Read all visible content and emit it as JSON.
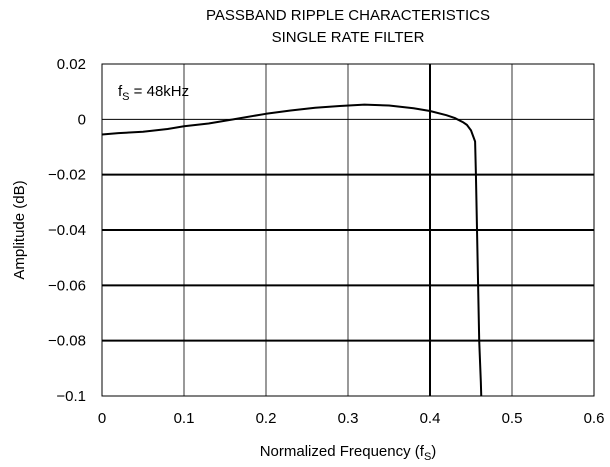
{
  "chart_data": {
    "type": "line",
    "title": [
      "PASSBAND RIPPLE CHARACTERISTICS",
      "SINGLE RATE FILTER"
    ],
    "xlabel": {
      "text": "Normalized Frequency (f",
      "sub": "S",
      "suffix": ")"
    },
    "ylabel": "Amplitude (dB)",
    "xlim": [
      0,
      0.6
    ],
    "ylim": [
      -0.1,
      0.02
    ],
    "x_ticks": [
      0,
      0.1,
      0.2,
      0.3,
      0.4,
      0.5,
      0.6
    ],
    "x_tick_labels": [
      "0",
      "0.1",
      "0.2",
      "0.3",
      "0.4",
      "0.5",
      "0.6"
    ],
    "y_ticks": [
      0.02,
      0,
      -0.02,
      -0.04,
      -0.06,
      -0.08,
      -0.1
    ],
    "y_tick_labels": [
      "0.02",
      "0",
      "−0.02",
      "−0.04",
      "−0.06",
      "−0.08",
      "−0.1"
    ],
    "grid": true,
    "annotation": {
      "prefix": "f",
      "sub": "S",
      "text": " = 48kHz"
    },
    "series": [
      {
        "color": "#000000",
        "x": [
          0,
          0.02,
          0.05,
          0.08,
          0.1,
          0.13,
          0.16,
          0.2,
          0.23,
          0.26,
          0.29,
          0.32,
          0.35,
          0.38,
          0.4,
          0.42,
          0.43,
          0.44,
          0.445,
          0.45,
          0.455,
          0.456,
          0.458,
          0.46,
          0.462,
          0.4625
        ],
        "y": [
          -0.0055,
          -0.005,
          -0.0045,
          -0.0035,
          -0.0025,
          -0.0015,
          0.0,
          0.002,
          0.0032,
          0.0042,
          0.0048,
          0.0053,
          0.005,
          0.004,
          0.003,
          0.0015,
          0.0005,
          -0.001,
          -0.002,
          -0.004,
          -0.008,
          -0.02,
          -0.05,
          -0.08,
          -0.095,
          -0.1
        ]
      }
    ]
  }
}
